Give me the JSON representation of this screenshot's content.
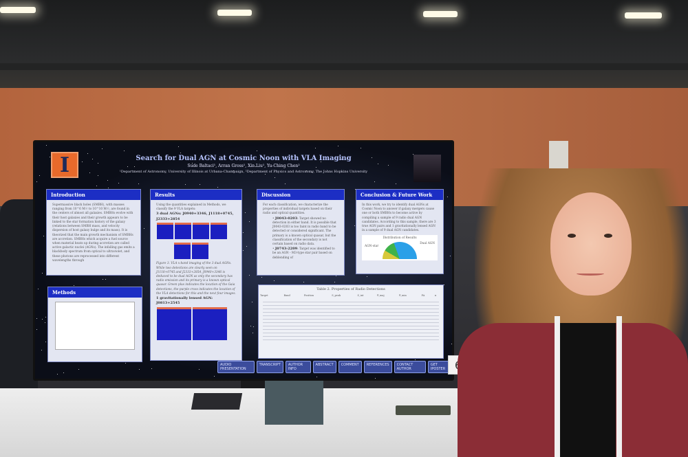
{
  "poster": {
    "logo": "I",
    "title": "Search for Dual AGN at Cosmic Noon with VLA Imaging",
    "authors": "Sude Baltaci¹, Arran Gross¹, Xin Liu¹, Yu-Ching Chen²",
    "affiliations": "¹Department of Astronomy, University of Illinois at Urbana-Champaign, ²Department of Physics and Astronomy, The Johns Hopkins University",
    "introduction": {
      "heading": "Introduction",
      "text": "Supermassive black holes (SMBH), with masses ranging from 10^6 M☉ to 10^10 M☉, are found in the centers of almost all galaxies. SMBHs evolve with their host galaxies and their growth appears to be linked to the star formation history of the galaxy (relations between SMBH mass, and velocity dispersion of host galaxy bulge and its mass). It is theorized that the main growth mechanism of SMBHs are accretion. SMBHs which acquire a fuel source when material heats up during accretion are called active galactic nuclei (AGNs). The infalling gas emits a blackbody spectrum from optical to ultraviolet, and these photons are reprocessed into different wavelengths through"
    },
    "methods": {
      "heading": "Methods"
    },
    "results": {
      "heading": "Results",
      "intro": "Using the quantities explained in Methods, we classify the 9 VLA targets:",
      "dual_heading": "3 dual AGNs: J0940+3346, J1118+0745, J2333+2854",
      "caption": "Figure 3. VLA x-band imaging of the 3 dual AGNs. While two detections are clearly seen on J1118+0745 and J2333+2854, J0940+3346 is deduced to be dual AGN as only the secondary has radio emission and its primary is a known optical quasar. Green plus indicates the location of the Gaia detections, the purple cross indicates the location of the VLA detections for this and the next four images.",
      "lensed_heading": "1 gravitationally lensed AGN: J0813+2545"
    },
    "discussion": {
      "heading": "Discussion",
      "intro": "For each classification, we characterize the properties of individual targets based on their radio and optical quantities.",
      "items": [
        {
          "name": "J0043-0203",
          "text": ": Target showed no detection in either band. It is possible that J0043-0203 is too faint in radio band to be detected or considered significant. The primary is a known optical quasar, but the classification of the secondary is not certain based on radio data."
        },
        {
          "name": "J0743-2209",
          "text": ": Target was identified to be an AGN - M3-type star pair based on deblending of"
        }
      ]
    },
    "conclusion": {
      "heading": "Conclusion & Future Work",
      "text": "In this work, we try to identify dual AGNs at Cosmic Noon to answer if galaxy mergers cause one or both SMBHs to become active by compiling a sample of 9 radio dual AGN candidates. According to this sample, there are 3 true AGN pairs and 1 gravitationally lensed AGN in a sample of 9 dual AGN candidates.",
      "chart_title": "Distribution of Results",
      "chart_labels": [
        "AGN-star",
        "Dual AGN"
      ],
      "chart_colors": [
        "#d7c83a",
        "#3fb24a",
        "#2aa0e8"
      ]
    },
    "table": {
      "caption": "Table 2. Properties of Radio Detections",
      "headers": [
        "Target",
        "Band",
        "Position",
        "S_peak",
        "S_int",
        "θ_maj",
        "θ_min",
        "PA",
        "α"
      ]
    },
    "buttons": [
      "AUDIO PRESENTATION",
      "TRANSCRIPT",
      "AUTHOR INFO",
      "ABSTRACT",
      "COMMENT",
      "REFERENCES",
      "CONTACT AUTHOR",
      "GET IPOSTER"
    ],
    "accent_color": "#1c2ec4"
  },
  "booth_number": "62"
}
